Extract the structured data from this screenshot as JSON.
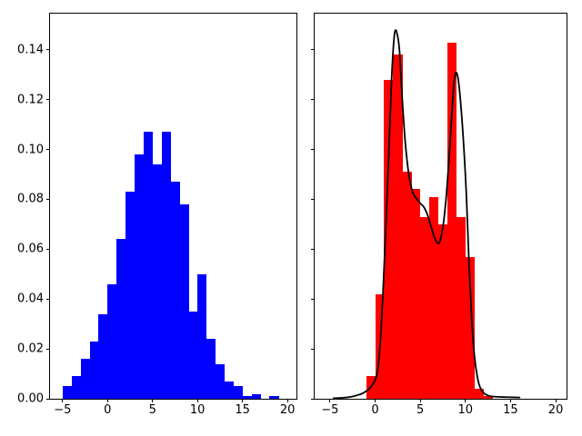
{
  "figure": {
    "background": "#ffffff"
  },
  "chart_data": [
    {
      "type": "bar",
      "name": "blue-histogram",
      "bar_color": "#0000ff",
      "bin_start": -5,
      "bin_width": 1,
      "values": [
        0.005,
        0.009,
        0.016,
        0.023,
        0.034,
        0.046,
        0.064,
        0.083,
        0.098,
        0.107,
        0.094,
        0.107,
        0.087,
        0.078,
        0.035,
        0.05,
        0.024,
        0.014,
        0.007,
        0.005,
        0.001,
        0.002,
        0.0,
        0.001,
        0.0
      ],
      "xlim": [
        -6.4,
        21.0
      ],
      "ylim": [
        0,
        0.1545
      ],
      "xticks": [
        -5,
        0,
        5,
        10,
        15,
        20
      ],
      "xtick_labels": [
        "−5",
        "0",
        "5",
        "10",
        "15",
        "20"
      ],
      "yticks": [
        0.0,
        0.02,
        0.04,
        0.06,
        0.08,
        0.1,
        0.12,
        0.14
      ],
      "ytick_labels": [
        "0.00",
        "0.02",
        "0.04",
        "0.06",
        "0.08",
        "0.10",
        "0.12",
        "0.14"
      ],
      "grid": false,
      "legend": null,
      "title": ""
    },
    {
      "type": "bar+line",
      "name": "red-histogram-with-kde",
      "bar_color": "#ff0000",
      "bin_start": -5,
      "bin_width": 1,
      "values": [
        0.0,
        0.0,
        0.0,
        0.0,
        0.009,
        0.042,
        0.128,
        0.138,
        0.091,
        0.084,
        0.073,
        0.081,
        0.07,
        0.143,
        0.073,
        0.057,
        0.004,
        0.001,
        0.0,
        0.0,
        0.0,
        0.0,
        0.0,
        0.0,
        0.0
      ],
      "xlim": [
        -6.7,
        21.2
      ],
      "ylim": [
        0,
        0.1545
      ],
      "xticks": [
        -5,
        0,
        5,
        10,
        15,
        20
      ],
      "xtick_labels": [
        "−5",
        "0",
        "5",
        "10",
        "15",
        "20"
      ],
      "yticks": [
        0.0,
        0.02,
        0.04,
        0.06,
        0.08,
        0.1,
        0.12,
        0.14
      ],
      "ytick_labels": [],
      "grid": false,
      "legend": null,
      "title": "",
      "kde": {
        "line_color": "#000000",
        "line_width": 1.8,
        "points": [
          [
            -4.6,
            0.0002
          ],
          [
            -4.0,
            0.0003
          ],
          [
            -3.5,
            0.0004
          ],
          [
            -3.0,
            0.0006
          ],
          [
            -2.5,
            0.0009
          ],
          [
            -2.0,
            0.0014
          ],
          [
            -1.5,
            0.002
          ],
          [
            -1.0,
            0.003
          ],
          [
            -0.5,
            0.0046
          ],
          [
            0.0,
            0.0075
          ],
          [
            0.3,
            0.012
          ],
          [
            0.6,
            0.024
          ],
          [
            0.9,
            0.045
          ],
          [
            1.2,
            0.07
          ],
          [
            1.5,
            0.097
          ],
          [
            1.8,
            0.126
          ],
          [
            2.0,
            0.14
          ],
          [
            2.2,
            0.1475
          ],
          [
            2.45,
            0.1462
          ],
          [
            2.7,
            0.1395
          ],
          [
            3.0,
            0.1205
          ],
          [
            3.3,
            0.1045
          ],
          [
            3.6,
            0.0935
          ],
          [
            3.9,
            0.0865
          ],
          [
            4.2,
            0.0825
          ],
          [
            4.6,
            0.0802
          ],
          [
            5.0,
            0.0784
          ],
          [
            5.4,
            0.0769
          ],
          [
            5.8,
            0.0738
          ],
          [
            6.2,
            0.069
          ],
          [
            6.6,
            0.0645
          ],
          [
            7.0,
            0.0623
          ],
          [
            7.3,
            0.0648
          ],
          [
            7.6,
            0.0714
          ],
          [
            7.9,
            0.0821
          ],
          [
            8.2,
            0.0975
          ],
          [
            8.5,
            0.1145
          ],
          [
            8.75,
            0.1272
          ],
          [
            8.95,
            0.1308
          ],
          [
            9.2,
            0.1282
          ],
          [
            9.5,
            0.1175
          ],
          [
            9.8,
            0.1022
          ],
          [
            10.1,
            0.0822
          ],
          [
            10.4,
            0.0542
          ],
          [
            10.7,
            0.0318
          ],
          [
            11.0,
            0.0172
          ],
          [
            11.3,
            0.0092
          ],
          [
            11.6,
            0.0048
          ],
          [
            12.0,
            0.0024
          ],
          [
            12.5,
            0.0013
          ],
          [
            13.0,
            0.0009
          ],
          [
            14.0,
            0.0007
          ],
          [
            15.0,
            0.0006
          ],
          [
            16.0,
            0.0005
          ]
        ]
      }
    }
  ]
}
